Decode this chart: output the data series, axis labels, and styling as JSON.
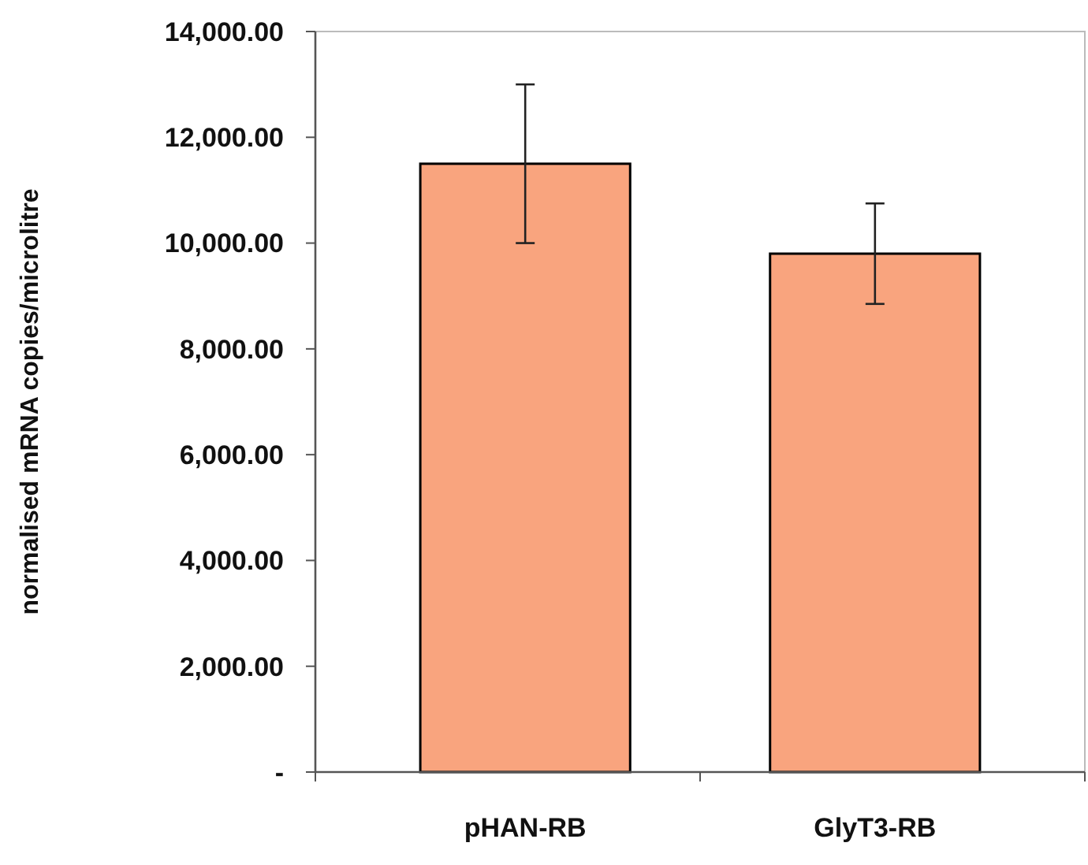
{
  "chart_data": {
    "type": "bar",
    "ylabel": "normalised mRNA copies/microlitre",
    "categories": [
      "pHAN-RB",
      "GlyT3-RB"
    ],
    "values": [
      11500,
      9800
    ],
    "errors": [
      1500,
      950
    ],
    "color": "#f9a47e",
    "ylim": [
      0,
      14000
    ],
    "yticks": [
      {
        "value": 0,
        "label": "-"
      },
      {
        "value": 2000,
        "label": "2,000.00"
      },
      {
        "value": 4000,
        "label": "4,000.00"
      },
      {
        "value": 6000,
        "label": "6,000.00"
      },
      {
        "value": 8000,
        "label": "8,000.00"
      },
      {
        "value": 10000,
        "label": "10,000.00"
      },
      {
        "value": 12000,
        "label": "12,000.00"
      },
      {
        "value": 14000,
        "label": "14,000.00"
      }
    ],
    "grid": false
  }
}
